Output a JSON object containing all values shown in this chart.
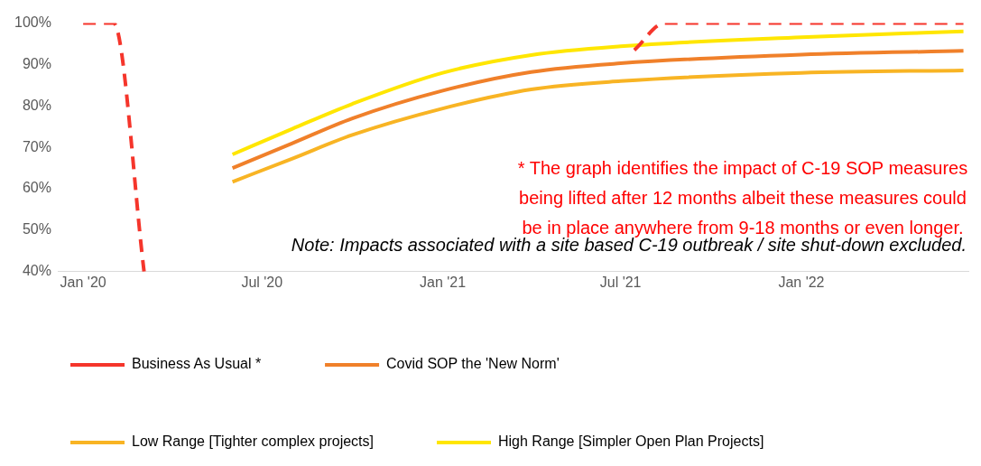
{
  "chart_data": {
    "type": "line",
    "annotations": [
      "* The graph identifies the impact of C-19 SOP measures being lifted after 12 months albeit these measures could be in place anywhere from 9-18 months or even longer.",
      "Note: Impacts associated with a site based C-19 outbreak / site shut-down excluded."
    ],
    "series": [
      {
        "name": "Business As Usual *",
        "color": "#f5352b",
        "line_style": "dashed",
        "x": [
          "2020-01-01",
          "2020-02-01",
          "2020-03-03",
          "2021-06-07",
          "2021-07-15",
          "2021-08-15",
          "2022-06-15"
        ],
        "values": [
          100,
          100,
          40,
          null,
          93.5,
          100,
          100
        ]
      },
      {
        "name": "Covid SOP the 'New Norm'",
        "color": "#f0802a",
        "x": [
          "2020-06-01",
          "2020-08-01",
          "2020-10-01",
          "2021-01-01",
          "2021-04-01",
          "2021-07-01",
          "2022-01-01",
          "2022-06-15"
        ],
        "values": [
          65,
          71,
          77,
          83.7,
          88.2,
          90.3,
          92.4,
          93.3
        ]
      },
      {
        "name": "Low Range [Tighter complex projects]",
        "color": "#f8b424",
        "x": [
          "2020-06-01",
          "2020-08-01",
          "2020-10-01",
          "2021-01-01",
          "2021-04-01",
          "2021-07-01",
          "2022-01-01",
          "2022-06-15"
        ],
        "values": [
          61.7,
          67.3,
          73,
          79.4,
          84,
          86,
          88,
          88.6
        ]
      },
      {
        "name": "High Range [Simpler Open Plan Projects]",
        "color": "#ffe600",
        "x": [
          "2020-06-01",
          "2020-08-01",
          "2020-10-01",
          "2021-01-01",
          "2021-04-01",
          "2021-07-01",
          "2022-01-01",
          "2022-06-15"
        ],
        "values": [
          68.3,
          74.5,
          80.5,
          88,
          92.3,
          94.4,
          96.6,
          98
        ]
      }
    ],
    "xlim": [
      "2019-12-07",
      "2022-06-20"
    ],
    "xticks": [
      {
        "value": "2020-01-01",
        "label": "Jan '20"
      },
      {
        "value": "2020-07-01",
        "label": "Jul '20"
      },
      {
        "value": "2021-01-01",
        "label": "Jan '21"
      },
      {
        "value": "2021-07-01",
        "label": "Jul '21"
      },
      {
        "value": "2022-01-01",
        "label": "Jan '22"
      }
    ],
    "ylim": [
      40,
      100
    ],
    "yticks": [
      {
        "value": 40,
        "label": "40%"
      },
      {
        "value": 50,
        "label": "50%"
      },
      {
        "value": 60,
        "label": "60%"
      },
      {
        "value": 70,
        "label": "70%"
      },
      {
        "value": 80,
        "label": "80%"
      },
      {
        "value": 90,
        "label": "90%"
      },
      {
        "value": 100,
        "label": "100%"
      }
    ],
    "grid": false,
    "legend": "bottom",
    "marker": "none"
  }
}
